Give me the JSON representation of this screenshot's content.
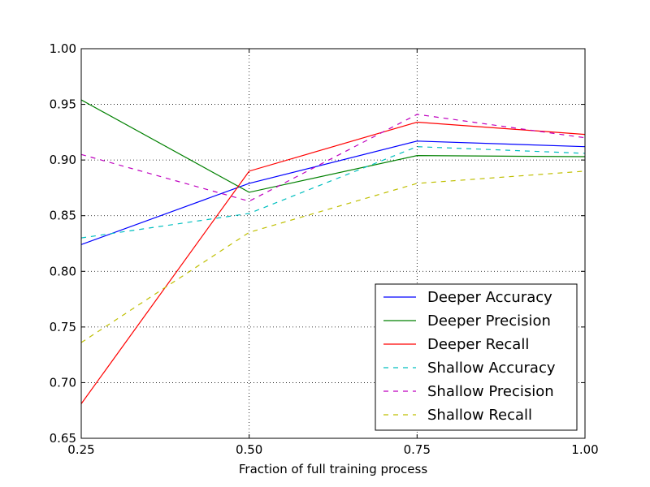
{
  "chart_data": {
    "type": "line",
    "title": "",
    "xlabel": "Fraction of full training process",
    "ylabel": "",
    "xlim": [
      0.25,
      1.0
    ],
    "ylim": [
      0.65,
      1.0
    ],
    "x": [
      0.25,
      0.5,
      0.75,
      1.0
    ],
    "x_ticks": [
      "0.25",
      "0.50",
      "0.75",
      "1.00"
    ],
    "y_ticks": [
      "0.65",
      "0.70",
      "0.75",
      "0.80",
      "0.85",
      "0.90",
      "0.95",
      "1.00"
    ],
    "grid": true,
    "legend_position": "lower-right",
    "series": [
      {
        "name": "Deeper Accuracy",
        "values": [
          0.824,
          0.879,
          0.917,
          0.912
        ],
        "color": "#0000ff",
        "style": "solid"
      },
      {
        "name": "Deeper Precision",
        "values": [
          0.954,
          0.871,
          0.904,
          0.903
        ],
        "color": "#008000",
        "style": "solid"
      },
      {
        "name": "Deeper Recall",
        "values": [
          0.681,
          0.89,
          0.934,
          0.923
        ],
        "color": "#ff0000",
        "style": "solid"
      },
      {
        "name": "Shallow Accuracy",
        "values": [
          0.83,
          0.852,
          0.912,
          0.906
        ],
        "color": "#00bfbf",
        "style": "dashed"
      },
      {
        "name": "Shallow Precision",
        "values": [
          0.905,
          0.863,
          0.941,
          0.92
        ],
        "color": "#bf00bf",
        "style": "dashed"
      },
      {
        "name": "Shallow Recall",
        "values": [
          0.736,
          0.835,
          0.879,
          0.89
        ],
        "color": "#bfbf00",
        "style": "dashed"
      }
    ]
  }
}
